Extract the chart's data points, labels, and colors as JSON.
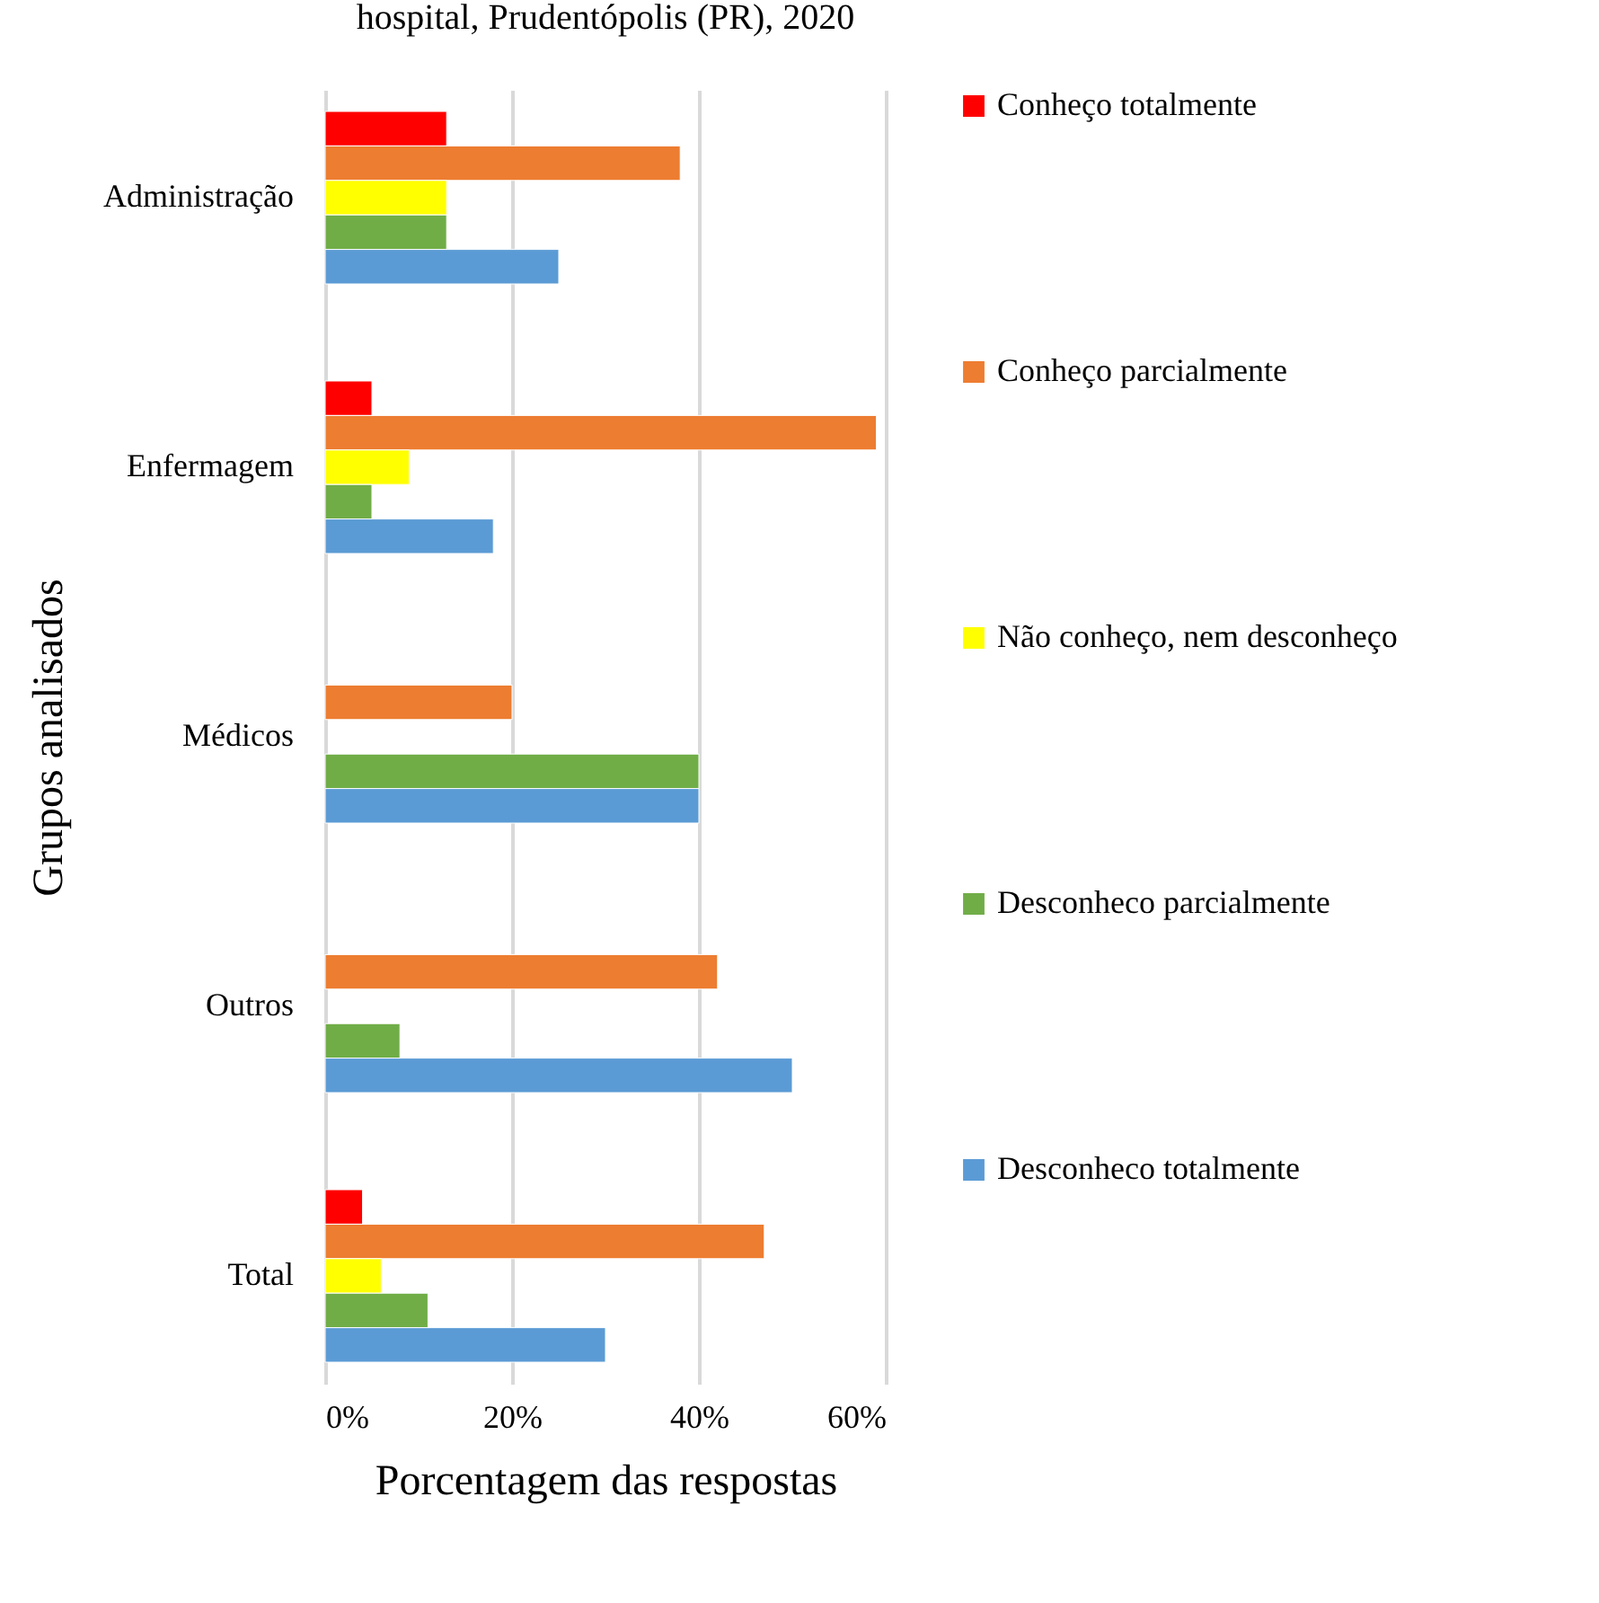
{
  "chart_data": {
    "type": "bar",
    "orientation": "horizontal",
    "title": "hospital, Prudentópolis (PR), 2020",
    "xlabel": "Porcentagem das respostas",
    "ylabel": "Grupos analisados",
    "categories": [
      "Administração",
      "Enfermagem",
      "Médicos",
      "Outros",
      "Total"
    ],
    "series": [
      {
        "name": "Conheço totalmente",
        "color": "#ff0000",
        "values": [
          13,
          5,
          null,
          null,
          4
        ]
      },
      {
        "name": "Conheço parcialmente",
        "color": "#ed7d31",
        "values": [
          38,
          59,
          20,
          42,
          47
        ]
      },
      {
        "name": "Não conheço, nem desconheço",
        "color": "#ffff00",
        "values": [
          13,
          9,
          null,
          null,
          6
        ]
      },
      {
        "name": "Desconheco parcialmente",
        "color": "#70ad47",
        "values": [
          13,
          5,
          40,
          8,
          11
        ]
      },
      {
        "name": "Desconheco totalmente",
        "color": "#5b9bd5",
        "values": [
          25,
          18,
          40,
          50,
          30
        ]
      }
    ],
    "xlim": [
      0,
      60
    ],
    "xticks": [
      {
        "value": 0,
        "label": "0%"
      },
      {
        "value": 20,
        "label": "20%"
      },
      {
        "value": 40,
        "label": "40%"
      },
      {
        "value": 60,
        "label": "60%"
      }
    ],
    "grid": "x",
    "legend": "right"
  }
}
